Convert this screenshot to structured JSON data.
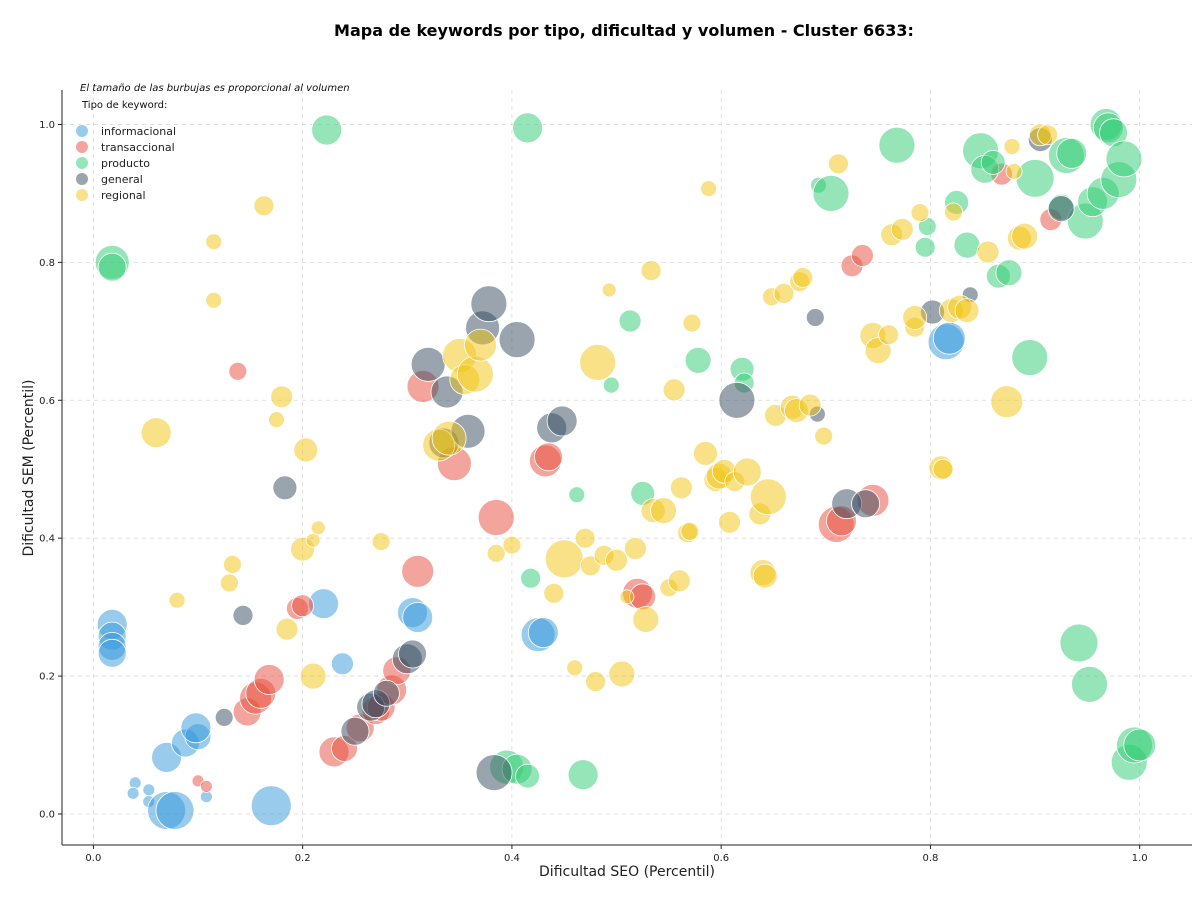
{
  "chart_data": {
    "type": "scatter",
    "title": "Mapa de keywords por tipo, dificultad y volumen - Cluster 6633:",
    "xlabel": "Dificultad SEO (Percentil)",
    "ylabel": "Dificultad SEM (Percentil)",
    "xlim": [
      -0.03,
      1.05
    ],
    "ylim": [
      -0.045,
      1.05
    ],
    "xticks": [
      0.0,
      0.2,
      0.4,
      0.6,
      0.8,
      1.0
    ],
    "yticks": [
      0.0,
      0.2,
      0.4,
      0.6,
      0.8,
      1.0
    ],
    "xtick_labels": [
      "0.0",
      "0.2",
      "0.4",
      "0.6",
      "0.8",
      "1.0"
    ],
    "ytick_labels": [
      "0.0",
      "0.2",
      "0.4",
      "0.6",
      "0.8",
      "1.0"
    ],
    "grid": true,
    "note": "El tamaño de las burbujas es proporcional al volumen",
    "legend_title": "Tipo de keyword:",
    "legend_position": "top-left",
    "series": [
      {
        "name": "informacional",
        "color": "#3498db",
        "points": [
          [
            0.018,
            0.275,
            15
          ],
          [
            0.018,
            0.258,
            14
          ],
          [
            0.018,
            0.243,
            14
          ],
          [
            0.018,
            0.233,
            14
          ],
          [
            0.04,
            0.045,
            6
          ],
          [
            0.038,
            0.03,
            6
          ],
          [
            0.053,
            0.035,
            6
          ],
          [
            0.053,
            0.018,
            6
          ],
          [
            0.07,
            0.005,
            19
          ],
          [
            0.078,
            0.005,
            19
          ],
          [
            0.108,
            0.025,
            6
          ],
          [
            0.07,
            0.082,
            15
          ],
          [
            0.088,
            0.103,
            14
          ],
          [
            0.1,
            0.112,
            13
          ],
          [
            0.098,
            0.125,
            15
          ],
          [
            0.17,
            0.012,
            20
          ],
          [
            0.22,
            0.305,
            15
          ],
          [
            0.238,
            0.218,
            11
          ],
          [
            0.305,
            0.292,
            15
          ],
          [
            0.31,
            0.285,
            15
          ],
          [
            0.425,
            0.26,
            17
          ],
          [
            0.43,
            0.263,
            15
          ],
          [
            0.815,
            0.685,
            18
          ],
          [
            0.818,
            0.69,
            16
          ]
        ]
      },
      {
        "name": "transaccional",
        "color": "#e74c3c",
        "points": [
          [
            0.1,
            0.048,
            6
          ],
          [
            0.108,
            0.04,
            6
          ],
          [
            0.138,
            0.642,
            9
          ],
          [
            0.147,
            0.148,
            14
          ],
          [
            0.155,
            0.168,
            16
          ],
          [
            0.16,
            0.175,
            15
          ],
          [
            0.168,
            0.195,
            15
          ],
          [
            0.195,
            0.298,
            11
          ],
          [
            0.2,
            0.302,
            11
          ],
          [
            0.23,
            0.09,
            15
          ],
          [
            0.24,
            0.095,
            13
          ],
          [
            0.255,
            0.125,
            14
          ],
          [
            0.27,
            0.15,
            14
          ],
          [
            0.275,
            0.155,
            14
          ],
          [
            0.285,
            0.18,
            15
          ],
          [
            0.29,
            0.208,
            14
          ],
          [
            0.31,
            0.352,
            16
          ],
          [
            0.315,
            0.62,
            16
          ],
          [
            0.345,
            0.508,
            17
          ],
          [
            0.385,
            0.43,
            18
          ],
          [
            0.432,
            0.512,
            16
          ],
          [
            0.435,
            0.518,
            14
          ],
          [
            0.52,
            0.32,
            15
          ],
          [
            0.525,
            0.315,
            13
          ],
          [
            0.71,
            0.42,
            18
          ],
          [
            0.715,
            0.425,
            15
          ],
          [
            0.725,
            0.795,
            11
          ],
          [
            0.735,
            0.81,
            11
          ],
          [
            0.745,
            0.455,
            16
          ],
          [
            0.868,
            0.928,
            11
          ],
          [
            0.915,
            0.862,
            11
          ]
        ]
      },
      {
        "name": "producto",
        "color": "#2ecc71",
        "points": [
          [
            0.018,
            0.8,
            17
          ],
          [
            0.018,
            0.793,
            14
          ],
          [
            0.223,
            0.992,
            15
          ],
          [
            0.415,
            0.995,
            15
          ],
          [
            0.395,
            0.068,
            17
          ],
          [
            0.405,
            0.065,
            15
          ],
          [
            0.415,
            0.055,
            12
          ],
          [
            0.418,
            0.342,
            10
          ],
          [
            0.462,
            0.463,
            8
          ],
          [
            0.468,
            0.057,
            15
          ],
          [
            0.495,
            0.622,
            8
          ],
          [
            0.513,
            0.715,
            11
          ],
          [
            0.525,
            0.465,
            12
          ],
          [
            0.578,
            0.658,
            13
          ],
          [
            0.62,
            0.645,
            12
          ],
          [
            0.622,
            0.625,
            10
          ],
          [
            0.693,
            0.912,
            8
          ],
          [
            0.705,
            0.9,
            18
          ],
          [
            0.768,
            0.97,
            18
          ],
          [
            0.795,
            0.822,
            10
          ],
          [
            0.797,
            0.852,
            9
          ],
          [
            0.825,
            0.887,
            12
          ],
          [
            0.835,
            0.825,
            13
          ],
          [
            0.848,
            0.962,
            18
          ],
          [
            0.852,
            0.935,
            14
          ],
          [
            0.86,
            0.945,
            12
          ],
          [
            0.865,
            0.78,
            12
          ],
          [
            0.875,
            0.785,
            13
          ],
          [
            0.895,
            0.662,
            18
          ],
          [
            0.9,
            0.922,
            19
          ],
          [
            0.925,
            0.88,
            13
          ],
          [
            0.93,
            0.955,
            18
          ],
          [
            0.935,
            0.958,
            15
          ],
          [
            0.942,
            0.248,
            19
          ],
          [
            0.948,
            0.86,
            18
          ],
          [
            0.952,
            0.188,
            18
          ],
          [
            0.955,
            0.888,
            15
          ],
          [
            0.965,
            0.9,
            16
          ],
          [
            0.968,
            1.0,
            16
          ],
          [
            0.97,
            0.995,
            15
          ],
          [
            0.975,
            0.988,
            14
          ],
          [
            0.98,
            0.92,
            18
          ],
          [
            0.985,
            0.95,
            18
          ],
          [
            0.99,
            0.075,
            18
          ],
          [
            0.995,
            0.1,
            18
          ],
          [
            1.0,
            0.1,
            16
          ]
        ]
      },
      {
        "name": "general",
        "color": "#34495e",
        "points": [
          [
            0.125,
            0.14,
            9
          ],
          [
            0.143,
            0.288,
            10
          ],
          [
            0.183,
            0.473,
            12
          ],
          [
            0.25,
            0.12,
            14
          ],
          [
            0.265,
            0.155,
            14
          ],
          [
            0.27,
            0.16,
            14
          ],
          [
            0.28,
            0.175,
            13
          ],
          [
            0.3,
            0.225,
            15
          ],
          [
            0.305,
            0.232,
            14
          ],
          [
            0.32,
            0.652,
            17
          ],
          [
            0.335,
            0.538,
            15
          ],
          [
            0.338,
            0.612,
            16
          ],
          [
            0.358,
            0.555,
            17
          ],
          [
            0.372,
            0.705,
            17
          ],
          [
            0.378,
            0.74,
            18
          ],
          [
            0.383,
            0.06,
            18
          ],
          [
            0.405,
            0.688,
            18
          ],
          [
            0.438,
            0.56,
            15
          ],
          [
            0.448,
            0.57,
            15
          ],
          [
            0.615,
            0.6,
            18
          ],
          [
            0.69,
            0.72,
            9
          ],
          [
            0.692,
            0.58,
            8
          ],
          [
            0.72,
            0.45,
            15
          ],
          [
            0.738,
            0.45,
            14
          ],
          [
            0.802,
            0.728,
            12
          ],
          [
            0.838,
            0.753,
            8
          ],
          [
            0.905,
            0.978,
            12
          ],
          [
            0.925,
            0.878,
            13
          ]
        ]
      },
      {
        "name": "regional",
        "color": "#f1c40f",
        "points": [
          [
            0.06,
            0.553,
            15
          ],
          [
            0.08,
            0.31,
            8
          ],
          [
            0.115,
            0.83,
            8
          ],
          [
            0.115,
            0.745,
            8
          ],
          [
            0.13,
            0.335,
            9
          ],
          [
            0.133,
            0.362,
            9
          ],
          [
            0.163,
            0.882,
            10
          ],
          [
            0.175,
            0.572,
            8
          ],
          [
            0.18,
            0.605,
            11
          ],
          [
            0.185,
            0.268,
            11
          ],
          [
            0.2,
            0.384,
            12
          ],
          [
            0.203,
            0.528,
            12
          ],
          [
            0.21,
            0.397,
            7
          ],
          [
            0.21,
            0.2,
            13
          ],
          [
            0.215,
            0.415,
            7
          ],
          [
            0.275,
            0.395,
            9
          ],
          [
            0.33,
            0.535,
            16
          ],
          [
            0.34,
            0.545,
            17
          ],
          [
            0.35,
            0.665,
            17
          ],
          [
            0.355,
            0.63,
            15
          ],
          [
            0.365,
            0.638,
            18
          ],
          [
            0.37,
            0.68,
            16
          ],
          [
            0.385,
            0.378,
            9
          ],
          [
            0.4,
            0.39,
            9
          ],
          [
            0.44,
            0.32,
            10
          ],
          [
            0.45,
            0.37,
            19
          ],
          [
            0.46,
            0.212,
            8
          ],
          [
            0.47,
            0.4,
            10
          ],
          [
            0.475,
            0.36,
            10
          ],
          [
            0.48,
            0.192,
            10
          ],
          [
            0.482,
            0.655,
            18
          ],
          [
            0.488,
            0.375,
            10
          ],
          [
            0.493,
            0.76,
            7
          ],
          [
            0.5,
            0.368,
            11
          ],
          [
            0.505,
            0.203,
            13
          ],
          [
            0.51,
            0.315,
            7
          ],
          [
            0.518,
            0.385,
            11
          ],
          [
            0.528,
            0.282,
            13
          ],
          [
            0.533,
            0.788,
            10
          ],
          [
            0.535,
            0.44,
            12
          ],
          [
            0.545,
            0.44,
            13
          ],
          [
            0.55,
            0.328,
            9
          ],
          [
            0.555,
            0.615,
            11
          ],
          [
            0.56,
            0.338,
            11
          ],
          [
            0.562,
            0.473,
            11
          ],
          [
            0.568,
            0.408,
            10
          ],
          [
            0.57,
            0.41,
            9
          ],
          [
            0.572,
            0.712,
            9
          ],
          [
            0.585,
            0.523,
            12
          ],
          [
            0.588,
            0.907,
            8
          ],
          [
            0.595,
            0.485,
            12
          ],
          [
            0.598,
            0.49,
            13
          ],
          [
            0.603,
            0.497,
            12
          ],
          [
            0.608,
            0.423,
            11
          ],
          [
            0.613,
            0.482,
            10
          ],
          [
            0.625,
            0.496,
            14
          ],
          [
            0.637,
            0.435,
            11
          ],
          [
            0.64,
            0.35,
            13
          ],
          [
            0.642,
            0.345,
            12
          ],
          [
            0.645,
            0.46,
            18
          ],
          [
            0.648,
            0.75,
            9
          ],
          [
            0.652,
            0.578,
            11
          ],
          [
            0.66,
            0.755,
            10
          ],
          [
            0.668,
            0.59,
            12
          ],
          [
            0.672,
            0.585,
            12
          ],
          [
            0.675,
            0.772,
            10
          ],
          [
            0.678,
            0.778,
            10
          ],
          [
            0.685,
            0.593,
            11
          ],
          [
            0.698,
            0.548,
            9
          ],
          [
            0.712,
            0.943,
            10
          ],
          [
            0.745,
            0.694,
            13
          ],
          [
            0.75,
            0.672,
            13
          ],
          [
            0.76,
            0.695,
            10
          ],
          [
            0.763,
            0.84,
            11
          ],
          [
            0.773,
            0.848,
            11
          ],
          [
            0.785,
            0.706,
            10
          ],
          [
            0.785,
            0.72,
            12
          ],
          [
            0.79,
            0.872,
            9
          ],
          [
            0.81,
            0.502,
            12
          ],
          [
            0.812,
            0.5,
            10
          ],
          [
            0.82,
            0.73,
            12
          ],
          [
            0.822,
            0.873,
            9
          ],
          [
            0.828,
            0.735,
            12
          ],
          [
            0.835,
            0.73,
            12
          ],
          [
            0.855,
            0.815,
            11
          ],
          [
            0.873,
            0.598,
            16
          ],
          [
            0.878,
            0.968,
            8
          ],
          [
            0.88,
            0.932,
            8
          ],
          [
            0.885,
            0.835,
            12
          ],
          [
            0.89,
            0.838,
            13
          ],
          [
            0.905,
            0.985,
            11
          ],
          [
            0.912,
            0.985,
            10
          ]
        ]
      }
    ]
  }
}
